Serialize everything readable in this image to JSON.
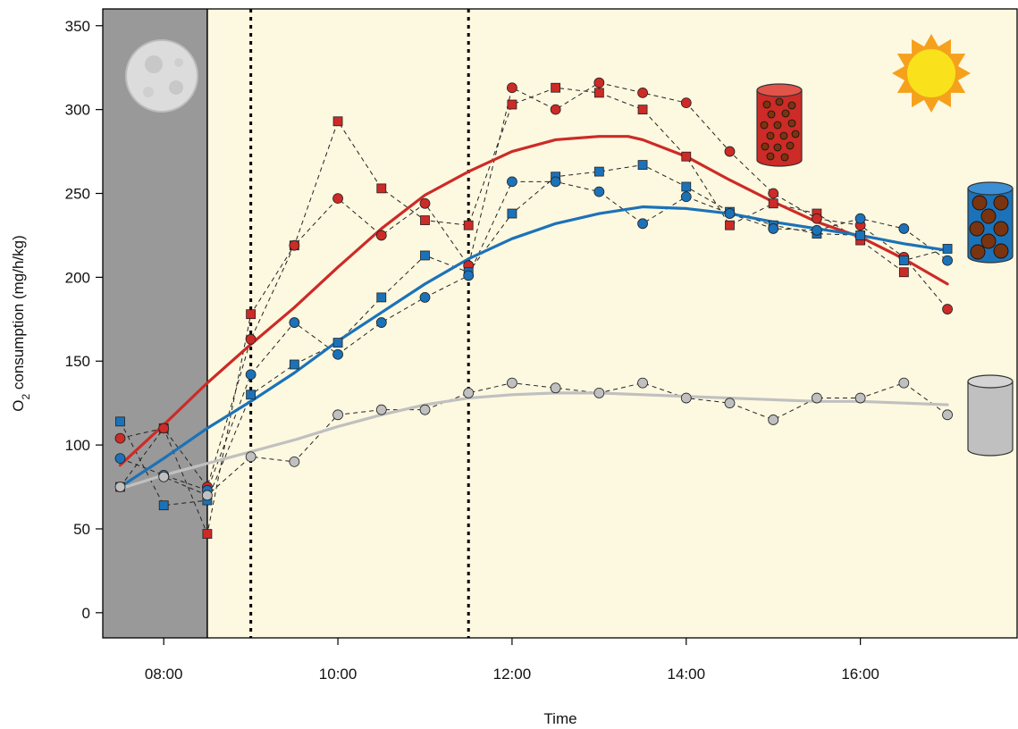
{
  "chart_data": {
    "type": "line",
    "xlabel": "Time",
    "ylabel": "O2 consumption (mg/h/kg)",
    "ylabel_main": "O",
    "ylabel_sub": "2",
    "ylabel_rest": " consumption (mg/h/kg)",
    "xlim": [
      "07:18",
      "17:48"
    ],
    "ylim": [
      -15,
      360
    ],
    "x_ticks": [
      "08:00",
      "10:00",
      "12:00",
      "14:00",
      "16:00"
    ],
    "y_ticks": [
      0,
      50,
      100,
      150,
      200,
      250,
      300,
      350
    ],
    "night_until": "08:30",
    "vertical_dotted_lines": [
      "09:00",
      "11:30"
    ],
    "colors": {
      "red": "#cc2b27",
      "blue": "#1b72b8",
      "grey": "#c0c0c0",
      "night": "#999999",
      "day": "#fdf8e0",
      "dashed": "#222222",
      "sun": "#f9e21b",
      "sun_rays": "#f5a11c",
      "brown": "#7a3410"
    },
    "icons": [
      "moon-icon",
      "sun-icon",
      "red-cylinder-icon",
      "blue-cylinder-icon",
      "grey-cylinder-icon"
    ],
    "series": [
      {
        "group": "red",
        "marker": "square",
        "style": "dashed",
        "points": [
          [
            "07:30",
            75
          ],
          [
            "08:00",
            110
          ],
          [
            "08:30",
            47
          ],
          [
            "09:00",
            178
          ],
          [
            "09:30",
            219
          ],
          [
            "10:00",
            293
          ],
          [
            "10:30",
            253
          ],
          [
            "11:00",
            234
          ],
          [
            "11:30",
            231
          ],
          [
            "12:00",
            303
          ],
          [
            "12:30",
            313
          ],
          [
            "13:00",
            310
          ],
          [
            "13:30",
            300
          ],
          [
            "14:00",
            272
          ],
          [
            "14:30",
            231
          ],
          [
            "15:00",
            244
          ],
          [
            "15:30",
            238
          ],
          [
            "16:00",
            222
          ],
          [
            "16:30",
            203
          ]
        ]
      },
      {
        "group": "red",
        "marker": "circle",
        "style": "dashed",
        "points": [
          [
            "07:30",
            104
          ],
          [
            "08:00",
            110
          ],
          [
            "08:30",
            75
          ],
          [
            "09:00",
            163
          ],
          [
            "09:30",
            219
          ],
          [
            "10:00",
            247
          ],
          [
            "10:30",
            225
          ],
          [
            "11:00",
            244
          ],
          [
            "11:30",
            207
          ],
          [
            "12:00",
            313
          ],
          [
            "12:30",
            300
          ],
          [
            "13:00",
            316
          ],
          [
            "13:30",
            310
          ],
          [
            "14:00",
            304
          ],
          [
            "14:30",
            275
          ],
          [
            "15:00",
            250
          ],
          [
            "15:30",
            235
          ],
          [
            "16:00",
            231
          ],
          [
            "16:30",
            212
          ],
          [
            "17:00",
            181
          ]
        ]
      },
      {
        "group": "blue",
        "marker": "square",
        "style": "dashed",
        "points": [
          [
            "07:30",
            114
          ],
          [
            "08:00",
            64
          ],
          [
            "08:30",
            67
          ],
          [
            "09:00",
            130
          ],
          [
            "09:30",
            148
          ],
          [
            "10:00",
            161
          ],
          [
            "10:30",
            188
          ],
          [
            "11:00",
            213
          ],
          [
            "11:30",
            203
          ],
          [
            "12:00",
            238
          ],
          [
            "12:30",
            260
          ],
          [
            "13:00",
            263
          ],
          [
            "13:30",
            267
          ],
          [
            "14:00",
            254
          ],
          [
            "14:30",
            239
          ],
          [
            "15:00",
            231
          ],
          [
            "15:30",
            226
          ],
          [
            "16:00",
            225
          ],
          [
            "16:30",
            210
          ],
          [
            "17:00",
            217
          ]
        ]
      },
      {
        "group": "blue",
        "marker": "circle",
        "style": "dashed",
        "points": [
          [
            "07:30",
            92
          ],
          [
            "08:00",
            82
          ],
          [
            "08:30",
            73
          ],
          [
            "09:00",
            142
          ],
          [
            "09:30",
            173
          ],
          [
            "10:00",
            154
          ],
          [
            "10:30",
            173
          ],
          [
            "11:00",
            188
          ],
          [
            "11:30",
            201
          ],
          [
            "12:00",
            257
          ],
          [
            "12:30",
            257
          ],
          [
            "13:00",
            251
          ],
          [
            "13:30",
            232
          ],
          [
            "14:00",
            248
          ],
          [
            "14:30",
            238
          ],
          [
            "15:00",
            229
          ],
          [
            "15:30",
            228
          ],
          [
            "16:00",
            235
          ],
          [
            "16:30",
            229
          ],
          [
            "17:00",
            210
          ]
        ]
      },
      {
        "group": "grey",
        "marker": "circle",
        "style": "dashed",
        "points": [
          [
            "07:30",
            75
          ],
          [
            "08:00",
            81
          ],
          [
            "08:30",
            70
          ],
          [
            "09:00",
            93
          ],
          [
            "09:30",
            90
          ],
          [
            "10:00",
            118
          ],
          [
            "10:30",
            121
          ],
          [
            "11:00",
            121
          ],
          [
            "11:30",
            131
          ],
          [
            "12:00",
            137
          ],
          [
            "12:30",
            134
          ],
          [
            "13:00",
            131
          ],
          [
            "13:30",
            137
          ],
          [
            "14:00",
            128
          ],
          [
            "14:30",
            125
          ],
          [
            "15:00",
            115
          ],
          [
            "15:30",
            128
          ],
          [
            "16:00",
            128
          ],
          [
            "16:30",
            137
          ],
          [
            "17:00",
            118
          ]
        ]
      },
      {
        "group": "red",
        "marker": "none",
        "style": "smooth",
        "points": [
          [
            "07:30",
            88
          ],
          [
            "08:00",
            112
          ],
          [
            "08:30",
            137
          ],
          [
            "09:00",
            160
          ],
          [
            "09:30",
            182
          ],
          [
            "10:00",
            206
          ],
          [
            "10:30",
            229
          ],
          [
            "11:00",
            249
          ],
          [
            "11:30",
            263
          ],
          [
            "12:00",
            275
          ],
          [
            "12:30",
            282
          ],
          [
            "13:00",
            284
          ],
          [
            "13:20",
            284
          ],
          [
            "13:30",
            282
          ],
          [
            "14:00",
            272
          ],
          [
            "14:30",
            258
          ],
          [
            "15:00",
            245
          ],
          [
            "15:30",
            233
          ],
          [
            "16:00",
            224
          ],
          [
            "16:30",
            211
          ],
          [
            "17:00",
            196
          ]
        ]
      },
      {
        "group": "blue",
        "marker": "none",
        "style": "smooth",
        "points": [
          [
            "07:30",
            75
          ],
          [
            "08:00",
            92
          ],
          [
            "08:30",
            110
          ],
          [
            "09:00",
            126
          ],
          [
            "09:30",
            143
          ],
          [
            "10:00",
            162
          ],
          [
            "10:30",
            179
          ],
          [
            "11:00",
            196
          ],
          [
            "11:30",
            211
          ],
          [
            "12:00",
            223
          ],
          [
            "12:30",
            232
          ],
          [
            "13:00",
            238
          ],
          [
            "13:30",
            242
          ],
          [
            "14:00",
            241
          ],
          [
            "14:30",
            238
          ],
          [
            "15:00",
            233
          ],
          [
            "15:30",
            229
          ],
          [
            "16:00",
            225
          ],
          [
            "16:30",
            220
          ],
          [
            "17:00",
            216
          ]
        ]
      },
      {
        "group": "grey",
        "marker": "none",
        "style": "smooth",
        "points": [
          [
            "07:30",
            74
          ],
          [
            "08:00",
            82
          ],
          [
            "08:30",
            89
          ],
          [
            "09:00",
            96
          ],
          [
            "09:30",
            103
          ],
          [
            "10:00",
            111
          ],
          [
            "10:30",
            118
          ],
          [
            "11:00",
            124
          ],
          [
            "11:30",
            128
          ],
          [
            "12:00",
            130
          ],
          [
            "12:30",
            131
          ],
          [
            "13:00",
            131
          ],
          [
            "13:30",
            130
          ],
          [
            "14:00",
            129
          ],
          [
            "14:30",
            128
          ],
          [
            "15:00",
            127
          ],
          [
            "15:30",
            126
          ],
          [
            "16:00",
            126
          ],
          [
            "16:30",
            125
          ],
          [
            "17:00",
            124
          ]
        ]
      }
    ]
  }
}
